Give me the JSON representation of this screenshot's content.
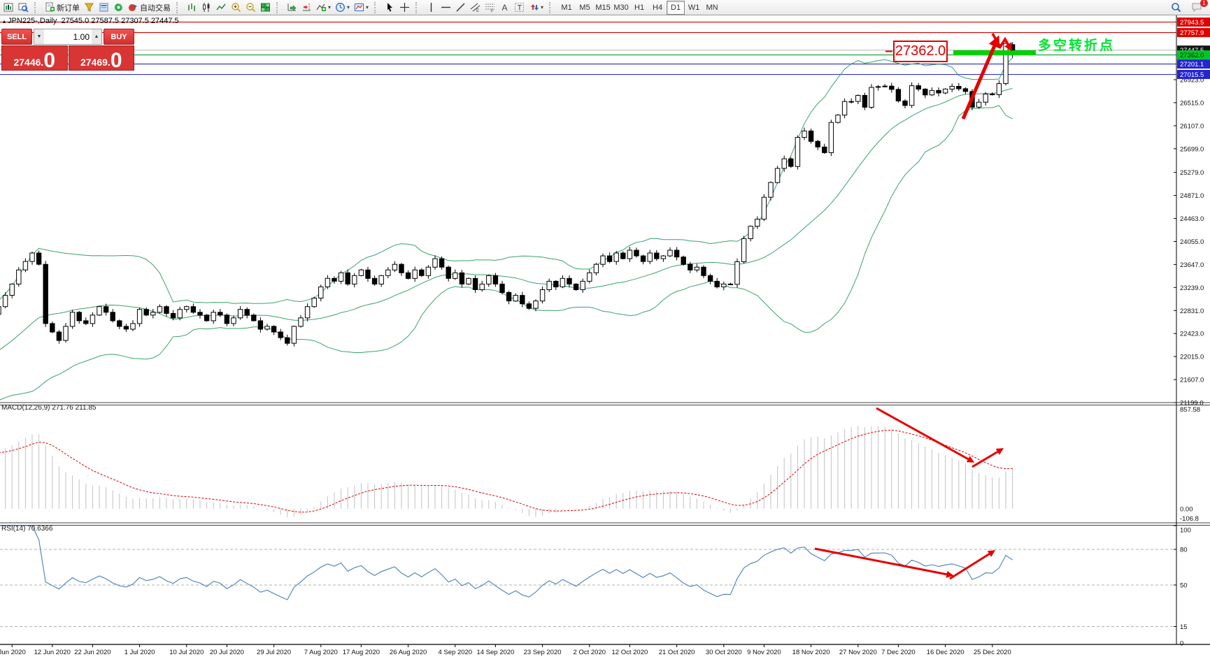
{
  "toolbar": {
    "new_order_label": "新订单",
    "autotrade_label": "自动交易",
    "timeframes": [
      "M1",
      "M5",
      "M15",
      "M30",
      "H1",
      "H4",
      "D1",
      "W1",
      "MN"
    ],
    "active_timeframe": "D1",
    "notification_count": "1",
    "glyphs": {
      "text_tool": "A",
      "label_tool": "T",
      "channel_tool": "E",
      "fib_tool": "F"
    }
  },
  "title": {
    "collapse_marker": "▴",
    "symbol": "JPN225-,Daily",
    "ohlc": "27545.0 27587.5 27307.5 27447.5"
  },
  "trade_panel": {
    "sell_label": "SELL",
    "buy_label": "BUY",
    "volume": "1.00",
    "sell_price_main": "27446.",
    "sell_price_big": "0",
    "buy_price_main": "27469.",
    "buy_price_big": "0"
  },
  "chart_data": {
    "type": "candlestick",
    "symbol": "JPN225-",
    "timeframe": "Daily",
    "last_candle": {
      "open": 27545.0,
      "high": 27587.5,
      "low": 27307.5,
      "close": 27447.5
    },
    "ylim": [
      21174,
      28063
    ],
    "price_axis_ticks": [
      26923.0,
      26515.0,
      26107.0,
      25699.0,
      25279.0,
      24871.0,
      24463.0,
      24055.0,
      23647.0,
      23239.0,
      22831.0,
      22423.0,
      22015.0,
      21607.0,
      21199.0
    ],
    "warmup": {
      "start": 19800,
      "step": 76,
      "count": 40
    },
    "closes": [
      22900,
      23100,
      23300,
      23550,
      23700,
      23850,
      23650,
      22600,
      22450,
      22300,
      22550,
      22800,
      22650,
      22600,
      22750,
      22900,
      22800,
      22650,
      22550,
      22500,
      22600,
      22850,
      22750,
      22800,
      22900,
      22780,
      22700,
      22850,
      22900,
      22800,
      22750,
      22650,
      22800,
      22750,
      22600,
      22700,
      22850,
      22750,
      22650,
      22500,
      22550,
      22450,
      22350,
      22250,
      22550,
      22700,
      22900,
      23050,
      23250,
      23400,
      23350,
      23500,
      23300,
      23450,
      23550,
      23400,
      23300,
      23450,
      23550,
      23650,
      23500,
      23400,
      23550,
      23450,
      23600,
      23750,
      23600,
      23400,
      23500,
      23300,
      23400,
      23200,
      23300,
      23450,
      23300,
      23150,
      23000,
      23100,
      22950,
      22870,
      23000,
      23200,
      23350,
      23250,
      23400,
      23300,
      23200,
      23350,
      23500,
      23650,
      23800,
      23700,
      23850,
      23750,
      23900,
      23800,
      23700,
      23850,
      23750,
      23800,
      23900,
      23780,
      23650,
      23550,
      23600,
      23450,
      23350,
      23250,
      23300,
      23295,
      23695,
      24105,
      24325,
      24450,
      24839,
      25100,
      25350,
      25520,
      25385,
      25900,
      26014,
      25830,
      25730,
      25630,
      26165,
      26296,
      26537,
      26537,
      26644,
      26434,
      26787,
      26800,
      26809,
      26751,
      26547,
      26467,
      26817,
      26756,
      26653,
      26732,
      26687,
      26757,
      26806,
      26763,
      26714,
      26436,
      26524,
      26668,
      26657,
      26854,
      27568,
      27447
    ],
    "date_ticks": [
      {
        "label": "Jun 2020",
        "day": 2
      },
      {
        "label": "12 Jun 2020",
        "day": 8
      },
      {
        "label": "22 Jun 2020",
        "day": 14
      },
      {
        "label": "1 Jul 2020",
        "day": 21
      },
      {
        "label": "10 Jul 2020",
        "day": 28
      },
      {
        "label": "20 Jul 2020",
        "day": 34
      },
      {
        "label": "29 Jul 2020",
        "day": 41
      },
      {
        "label": "7 Aug 2020",
        "day": 48
      },
      {
        "label": "17 Aug 2020",
        "day": 54
      },
      {
        "label": "26 Aug 2020",
        "day": 61
      },
      {
        "label": "4 Sep 2020",
        "day": 68
      },
      {
        "label": "14 Sep 2020",
        "day": 74
      },
      {
        "label": "23 Sep 2020",
        "day": 81
      },
      {
        "label": "2 Oct 2020",
        "day": 88
      },
      {
        "label": "12 Oct 2020",
        "day": 94
      },
      {
        "label": "21 Oct 2020",
        "day": 101
      },
      {
        "label": "30 Oct 2020",
        "day": 108
      },
      {
        "label": "9 Nov 2020",
        "day": 114
      },
      {
        "label": "18 Nov 2020",
        "day": 121
      },
      {
        "label": "27 Nov 2020",
        "day": 128
      },
      {
        "label": "7 Dec 2020",
        "day": 134
      },
      {
        "label": "16 Dec 2020",
        "day": 141
      },
      {
        "label": "25 Dec 2020",
        "day": 148
      }
    ],
    "hlines": [
      {
        "price": 27943.5,
        "label": "27943.5",
        "color": "#d40000",
        "badge_bg": "#e00000",
        "badge_fg": "#ffffff"
      },
      {
        "price": 27757.9,
        "label": "27757.9",
        "color": "#d40000",
        "badge_bg": "#e00000",
        "badge_fg": "#ffffff"
      },
      {
        "price": 27362.0,
        "label": "27362.0",
        "color": "#00a02a",
        "badge_bg": "#00c62a",
        "badge_fg": "#003300"
      },
      {
        "price": 27201.1,
        "label": "27201.1",
        "color": "#2626d8",
        "badge_bg": "#2424d0",
        "badge_fg": "#ffffff"
      },
      {
        "price": 27015.5,
        "label": "27015.5",
        "color": "#2626d8",
        "badge_bg": "#2424d0",
        "badge_fg": "#ffffff"
      }
    ],
    "current_price": {
      "price": 27447.5,
      "label": "27447.5",
      "line_color": "#b4b4b4",
      "badge_bg": "#141414",
      "badge_fg": "#ffffff"
    },
    "bollinger": {
      "period": 20,
      "deviation": 2,
      "color": "#3aa36a"
    },
    "candle_colors": {
      "bull_fill": "#ffffff",
      "bear_fill": "#000000",
      "outline": "#000000"
    },
    "indicators": {
      "macd": {
        "label": "MACD(12,26,9)",
        "fast": 12,
        "slow": 26,
        "signal": 9,
        "value_main": "271.76",
        "value_signal": "211.85",
        "ylim": [
          -106.8,
          857.58
        ],
        "axis_labels": [
          "857.58",
          "0.00",
          "-106.8"
        ],
        "hist_color": "#c2c2c2",
        "signal_color": "#e00000"
      },
      "rsi": {
        "label": "RSI(14)",
        "period": 14,
        "value": "70.6366",
        "levels": [
          100,
          80,
          50,
          15,
          0
        ],
        "dashed_levels": [
          80,
          50,
          15
        ],
        "line_color": "#4a7ebb",
        "ylim": [
          0,
          100
        ]
      }
    },
    "annotations": {
      "price_box": "27362.0",
      "pivot_note": "多空转折点",
      "note_color": "#00e432",
      "highlight_bar_color": "#00d200",
      "arrow_color": "#e60000"
    }
  }
}
